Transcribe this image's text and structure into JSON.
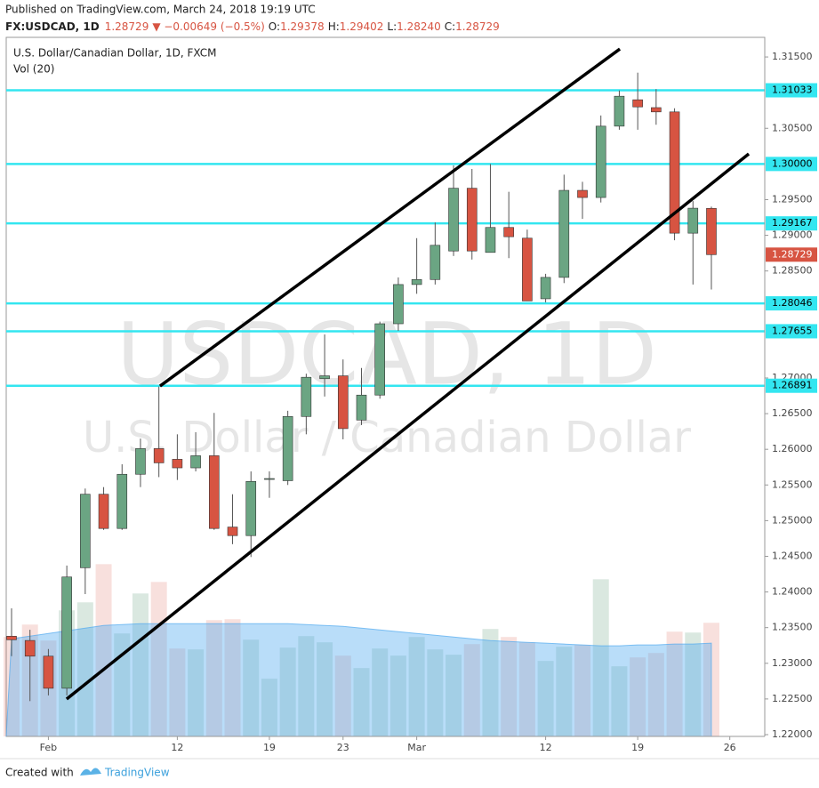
{
  "header": {
    "published": "Published on TradingView.com, March 24, 2018 19:19 UTC",
    "symbol": "FX:USDCAD, 1D",
    "last": "1.28729",
    "change": "▼ −0.00649 (−0.5%)",
    "o_label": "O:",
    "o": "1.29378",
    "h_label": "H:",
    "h": "1.29402",
    "l_label": "L:",
    "l": "1.28240",
    "c_label": "C:",
    "c": "1.28729"
  },
  "footer": {
    "created": "Created with",
    "brand": "TradingView"
  },
  "chart_data": {
    "type": "candlestick",
    "legend": {
      "name": "U.S. Dollar/Canadian Dollar, 1D, FXCM",
      "volume": "Vol (20)"
    },
    "watermark": {
      "line1": "USDCAD, 1D",
      "line2": "U.S. Dollar / Canadian Dollar"
    },
    "categories": [
      null,
      null,
      "Feb",
      null,
      null,
      null,
      null,
      null,
      null,
      "12",
      null,
      null,
      null,
      null,
      "19",
      null,
      null,
      null,
      "23",
      null,
      null,
      null,
      "Mar",
      null,
      null,
      null,
      null,
      null,
      null,
      "12",
      null,
      null,
      null,
      null,
      "19",
      null,
      null,
      null,
      null,
      "26"
    ],
    "open": [
      1.2338,
      1.2332,
      1.231,
      1.2265,
      1.2434,
      1.2537,
      1.2489,
      1.2565,
      1.2601,
      1.2586,
      1.2574,
      1.2591,
      1.2491,
      1.2479,
      1.2558,
      1.2556,
      1.2646,
      1.2699,
      1.2703,
      1.2641,
      1.2676,
      1.2776,
      1.2831,
      1.2838,
      1.2878,
      1.2966,
      1.2876,
      1.2911,
      1.2896,
      1.2811,
      1.2841,
      1.2963,
      1.2953,
      1.3053,
      1.309,
      1.3079,
      1.3073,
      1.2903,
      1.29378,
      null
    ],
    "high": [
      1.2377,
      1.2347,
      1.232,
      1.2437,
      1.2545,
      1.2547,
      1.2579,
      1.2615,
      1.2688,
      1.2621,
      1.2624,
      1.2651,
      1.2537,
      1.2569,
      1.2569,
      1.2654,
      1.2706,
      1.2761,
      1.2726,
      1.2714,
      1.2779,
      1.2841,
      1.2896,
      1.2918,
      1.2998,
      1.2993,
      1.3,
      1.2961,
      1.2908,
      1.2846,
      1.2985,
      1.2975,
      1.3068,
      1.3103,
      1.3128,
      1.3105,
      1.3078,
      1.2948,
      1.29402,
      null
    ],
    "low": [
      1.231,
      1.2247,
      1.2255,
      1.2255,
      1.2397,
      1.2487,
      1.2487,
      1.2547,
      1.2561,
      1.2557,
      1.2569,
      1.2487,
      1.2467,
      1.2449,
      1.2532,
      1.255,
      1.2621,
      1.2674,
      1.2614,
      1.2634,
      1.2671,
      1.2766,
      1.2818,
      1.2831,
      1.2871,
      1.2866,
      1.2876,
      1.2868,
      1.2808,
      1.2806,
      1.2833,
      1.2923,
      1.2946,
      1.3048,
      1.3048,
      1.3055,
      1.2893,
      1.2831,
      1.2824,
      null
    ],
    "close": [
      1.2333,
      1.231,
      1.2265,
      1.2421,
      1.2537,
      1.2489,
      1.2565,
      1.2601,
      1.2581,
      1.2574,
      1.2591,
      1.2489,
      1.2479,
      1.2555,
      1.2559,
      1.2646,
      1.2701,
      1.2703,
      1.2629,
      1.2676,
      1.2776,
      1.2831,
      1.2838,
      1.2886,
      1.2966,
      1.2878,
      1.2911,
      1.2898,
      1.2808,
      1.2841,
      1.2963,
      1.2953,
      1.3053,
      1.3095,
      1.308,
      1.3073,
      1.2903,
      1.2938,
      1.28729,
      null
    ],
    "volume": [
      112,
      126,
      108,
      142,
      151,
      194,
      116,
      161,
      174,
      99,
      98,
      131,
      132,
      109,
      65,
      100,
      113,
      106,
      91,
      77,
      99,
      91,
      112,
      98,
      92,
      104,
      121,
      112,
      106,
      85,
      101,
      103,
      177,
      79,
      89,
      94,
      118,
      117,
      128,
      null
    ],
    "vol_ma": [
      110,
      113,
      116,
      119,
      122,
      125,
      126,
      127,
      127,
      127,
      127,
      127,
      127,
      127,
      127,
      127,
      126,
      125,
      124,
      122,
      120,
      118,
      116,
      114,
      112,
      110,
      108,
      107,
      106,
      105,
      104,
      103,
      102,
      102,
      103,
      103,
      104,
      104,
      105,
      null
    ],
    "volume_ylim": [
      0,
      200
    ],
    "ylim": [
      1.21975,
      1.31775
    ],
    "yticks": [
      {
        "value": 1.315,
        "label": "1.31500"
      },
      {
        "value": 1.305,
        "label": "1.30500"
      },
      {
        "value": 1.295,
        "label": "1.29500"
      },
      {
        "value": 1.29,
        "label": "1.29000"
      },
      {
        "value": 1.285,
        "label": "1.28500"
      },
      {
        "value": 1.27,
        "label": "1.27000"
      },
      {
        "value": 1.265,
        "label": "1.26500"
      },
      {
        "value": 1.26,
        "label": "1.26000"
      },
      {
        "value": 1.255,
        "label": "1.25500"
      },
      {
        "value": 1.25,
        "label": "1.25000"
      },
      {
        "value": 1.245,
        "label": "1.24500"
      },
      {
        "value": 1.24,
        "label": "1.24000"
      },
      {
        "value": 1.235,
        "label": "1.23500"
      },
      {
        "value": 1.23,
        "label": "1.23000"
      },
      {
        "value": 1.225,
        "label": "1.22500"
      },
      {
        "value": 1.22,
        "label": "1.22000"
      }
    ],
    "levels": [
      {
        "value": 1.31033,
        "label": "1.31033"
      },
      {
        "value": 1.3,
        "label": "1.30000"
      },
      {
        "value": 1.29167,
        "label": "1.29167"
      },
      {
        "value": 1.28046,
        "label": "1.28046"
      },
      {
        "value": 1.27655,
        "label": "1.27655"
      },
      {
        "value": 1.26891,
        "label": "1.26891"
      }
    ],
    "level_color": "#33e6f0",
    "last_price": {
      "value": 1.28729,
      "label": "1.28729"
    },
    "trend_lines": [
      {
        "x": [
          8.06,
          33.03
        ],
        "y": [
          1.26887,
          1.31612
        ]
      },
      {
        "x": [
          2.99,
          40.03
        ],
        "y": [
          1.22499,
          1.30141
        ]
      }
    ],
    "up_color": "#6ba583",
    "down_color": "#d75442",
    "grid": false
  }
}
